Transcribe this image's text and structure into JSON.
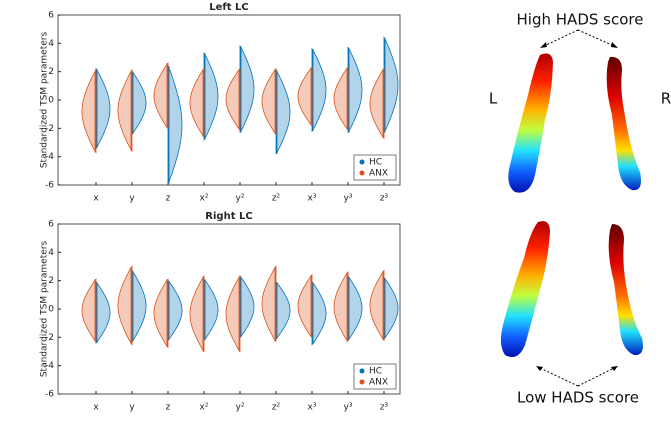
{
  "chart_data": [
    {
      "type": "violin",
      "title": "Left LC",
      "ylabel": "Standardized TSM parameters",
      "categories": [
        "x",
        "y",
        "z",
        "x²",
        "y²",
        "z²",
        "x³",
        "y³",
        "z³"
      ],
      "ylim": [
        -6,
        6
      ],
      "yticks": [
        -6,
        -4,
        -2,
        0,
        2,
        4,
        6
      ],
      "legend": "lower right",
      "series": [
        {
          "name": "HC",
          "color": "#0072bd",
          "side": "right",
          "min": [
            -3.4,
            -2.4,
            -5.9,
            -2.8,
            -2.3,
            -3.8,
            -2.2,
            -2.3,
            -2.3
          ],
          "max": [
            2.2,
            2.0,
            2.4,
            3.3,
            3.8,
            2.1,
            3.6,
            3.7,
            4.4
          ]
        },
        {
          "name": "ANX",
          "color": "#d95319",
          "side": "left",
          "min": [
            -3.7,
            -3.6,
            -2.0,
            -2.6,
            -2.1,
            -2.4,
            -1.8,
            -2.1,
            -2.7
          ],
          "max": [
            2.1,
            2.1,
            2.6,
            2.2,
            2.2,
            2.2,
            2.3,
            2.3,
            2.2
          ]
        }
      ]
    },
    {
      "type": "violin",
      "title": "Right LC",
      "ylabel": "Standardized TSM parameters",
      "categories": [
        "x",
        "y",
        "z",
        "x²",
        "y²",
        "z²",
        "x³",
        "y³",
        "z³"
      ],
      "ylim": [
        -6,
        6
      ],
      "yticks": [
        -6,
        -4,
        -2,
        0,
        2,
        4,
        6
      ],
      "legend": "lower right",
      "series": [
        {
          "name": "HC",
          "color": "#0072bd",
          "side": "right",
          "min": [
            -2.4,
            -2.3,
            -2.2,
            -2.2,
            -2.0,
            -2.1,
            -2.5,
            -2.2,
            -2.1
          ],
          "max": [
            1.9,
            2.7,
            2.0,
            2.1,
            2.3,
            1.9,
            1.9,
            2.3,
            2.2
          ]
        },
        {
          "name": "ANX",
          "color": "#d95319",
          "side": "left",
          "min": [
            -2.3,
            -2.5,
            -2.7,
            -3.0,
            -3.0,
            -2.3,
            -2.0,
            -2.3,
            -2.2
          ],
          "max": [
            2.1,
            3.0,
            2.1,
            2.3,
            2.3,
            3.0,
            2.4,
            2.6,
            2.7
          ]
        }
      ]
    }
  ],
  "figure_panel": {
    "top_label": "High HADS score",
    "bottom_label": "Low HADS score",
    "left_label": "L",
    "right_label": "R"
  }
}
